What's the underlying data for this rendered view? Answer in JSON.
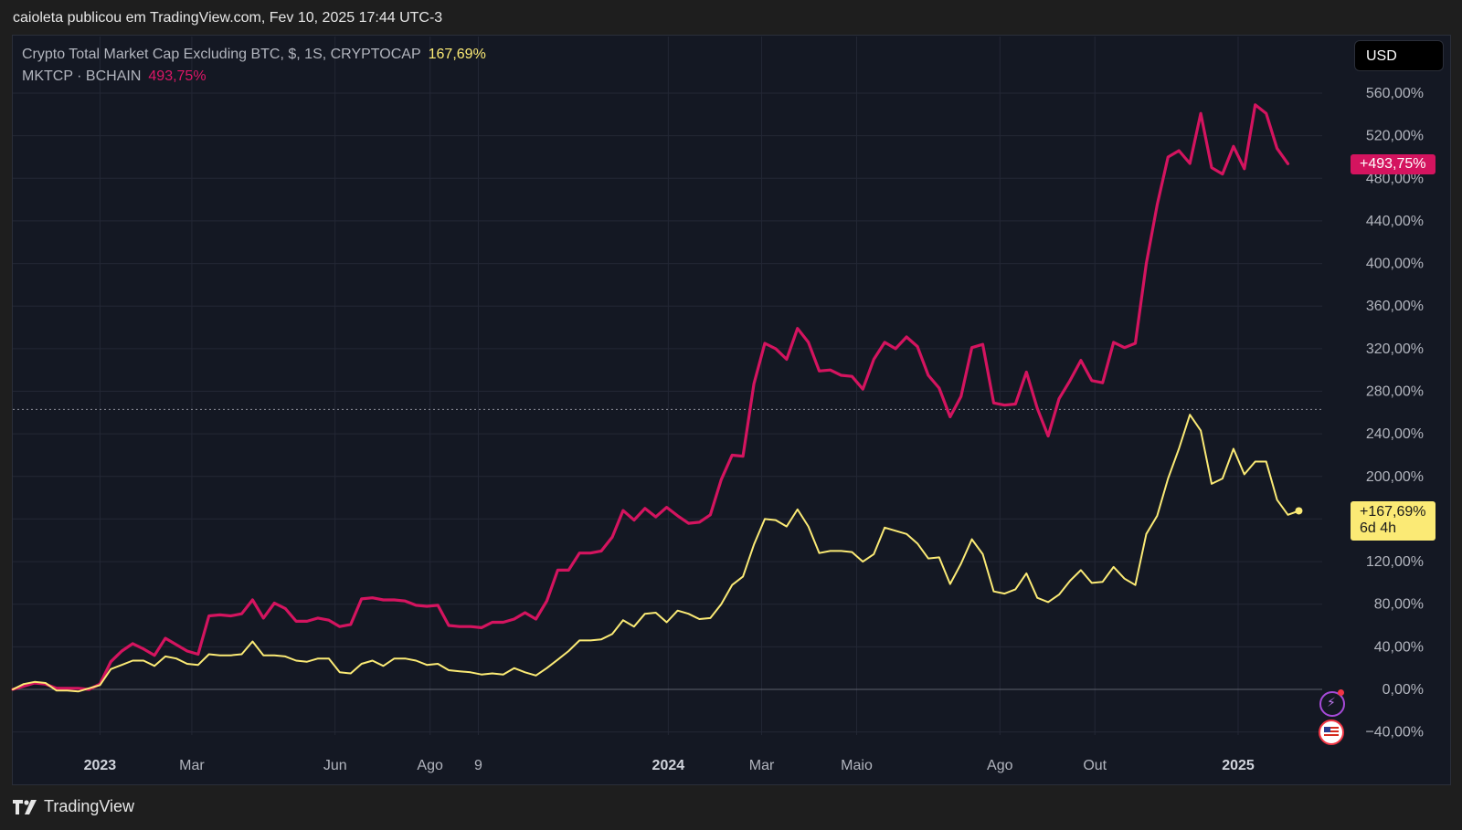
{
  "header": {
    "publish_line": "caioleta publicou em TradingView.com, Fev 10, 2025 17:44 UTC-3"
  },
  "legend": {
    "series1_name": "Crypto Total Market Cap Excluding BTC, $, 1S, CRYPTOCAP",
    "series1_value": "167,69%",
    "series2_name": "MKTCP · BCHAIN",
    "series2_value": "493,75%"
  },
  "currency_button": "USD",
  "badges": {
    "pink": "+493,75%",
    "yellow_value": "+167,69%",
    "yellow_countdown": "6d 4h"
  },
  "footer": {
    "brand": "TradingView"
  },
  "icons": {
    "bolt": "lightning-icon",
    "flag": "us-flag-icon",
    "logo": "tradingview-logo-icon"
  },
  "colors": {
    "pink": "#d4145f",
    "yellow": "#fbea75",
    "background": "#141823",
    "grid": "#232735"
  },
  "chart_data": {
    "type": "line",
    "y_unit": "%",
    "ylim": [
      -60,
      590
    ],
    "y_ticks": [
      {
        "value": 560,
        "label": "560,00%"
      },
      {
        "value": 520,
        "label": "520,00%"
      },
      {
        "value": 480,
        "label": "480,00%"
      },
      {
        "value": 440,
        "label": "440,00%"
      },
      {
        "value": 400,
        "label": "400,00%"
      },
      {
        "value": 360,
        "label": "360,00%"
      },
      {
        "value": 320,
        "label": "320,00%"
      },
      {
        "value": 280,
        "label": "280,00%"
      },
      {
        "value": 240,
        "label": "240,00%"
      },
      {
        "value": 200,
        "label": "200,00%"
      },
      {
        "value": 160,
        "label": "160,00%"
      },
      {
        "value": 120,
        "label": "120,00%"
      },
      {
        "value": 80,
        "label": "80,00%"
      },
      {
        "value": 40,
        "label": "40,00%"
      },
      {
        "value": 0,
        "label": "0,00%"
      },
      {
        "value": -40,
        "label": "−40,00%"
      }
    ],
    "x_ticks": [
      {
        "date": "2023-01-01",
        "label": "2023",
        "bold": true
      },
      {
        "date": "2023-03-01",
        "label": "Mar",
        "bold": false
      },
      {
        "date": "2023-06-01",
        "label": "Jun",
        "bold": false
      },
      {
        "date": "2023-08-01",
        "label": "Ago",
        "bold": false
      },
      {
        "date": "2023-09-01",
        "label": "9",
        "bold": false
      },
      {
        "date": "2024-01-01",
        "label": "2024",
        "bold": true
      },
      {
        "date": "2024-03-01",
        "label": "Mar",
        "bold": false
      },
      {
        "date": "2024-05-01",
        "label": "Maio",
        "bold": false
      },
      {
        "date": "2024-08-01",
        "label": "Ago",
        "bold": false
      },
      {
        "date": "2024-10-01",
        "label": "Out",
        "bold": false
      },
      {
        "date": "2025-01-01",
        "label": "2025",
        "bold": true
      }
    ],
    "x_range": [
      "2022-11-06",
      "2025-02-24"
    ],
    "reference_line_value": 263,
    "series": [
      {
        "name": "MKTCP · BCHAIN",
        "color": "#d4145f",
        "points": [
          [
            "2022-11-06",
            0
          ],
          [
            "2022-11-13",
            3
          ],
          [
            "2022-11-20",
            6
          ],
          [
            "2022-11-27",
            5
          ],
          [
            "2022-12-04",
            1
          ],
          [
            "2022-12-11",
            1
          ],
          [
            "2022-12-18",
            1
          ],
          [
            "2022-12-25",
            0
          ],
          [
            "2023-01-01",
            5
          ],
          [
            "2023-01-08",
            26
          ],
          [
            "2023-01-15",
            36
          ],
          [
            "2023-01-22",
            43
          ],
          [
            "2023-01-29",
            38
          ],
          [
            "2023-02-05",
            32
          ],
          [
            "2023-02-12",
            48
          ],
          [
            "2023-02-19",
            42
          ],
          [
            "2023-02-26",
            36
          ],
          [
            "2023-03-05",
            33
          ],
          [
            "2023-03-12",
            69
          ],
          [
            "2023-03-19",
            70
          ],
          [
            "2023-03-26",
            69
          ],
          [
            "2023-04-02",
            71
          ],
          [
            "2023-04-09",
            84
          ],
          [
            "2023-04-16",
            67
          ],
          [
            "2023-04-23",
            81
          ],
          [
            "2023-04-30",
            76
          ],
          [
            "2023-05-07",
            64
          ],
          [
            "2023-05-14",
            64
          ],
          [
            "2023-05-21",
            67
          ],
          [
            "2023-05-28",
            65
          ],
          [
            "2023-06-04",
            59
          ],
          [
            "2023-06-11",
            61
          ],
          [
            "2023-06-18",
            85
          ],
          [
            "2023-06-25",
            86
          ],
          [
            "2023-07-02",
            84
          ],
          [
            "2023-07-09",
            84
          ],
          [
            "2023-07-16",
            83
          ],
          [
            "2023-07-23",
            79
          ],
          [
            "2023-07-30",
            78
          ],
          [
            "2023-08-06",
            79
          ],
          [
            "2023-08-13",
            60
          ],
          [
            "2023-08-20",
            59
          ],
          [
            "2023-08-27",
            59
          ],
          [
            "2023-09-03",
            58
          ],
          [
            "2023-09-10",
            63
          ],
          [
            "2023-09-17",
            63
          ],
          [
            "2023-09-24",
            66
          ],
          [
            "2023-10-01",
            72
          ],
          [
            "2023-10-08",
            66
          ],
          [
            "2023-10-15",
            83
          ],
          [
            "2023-10-22",
            112
          ],
          [
            "2023-10-29",
            112
          ],
          [
            "2023-11-05",
            128
          ],
          [
            "2023-11-12",
            128
          ],
          [
            "2023-11-19",
            130
          ],
          [
            "2023-11-26",
            143
          ],
          [
            "2023-12-03",
            168
          ],
          [
            "2023-12-10",
            159
          ],
          [
            "2023-12-17",
            170
          ],
          [
            "2023-12-24",
            162
          ],
          [
            "2023-12-31",
            171
          ],
          [
            "2024-01-07",
            163
          ],
          [
            "2024-01-14",
            156
          ],
          [
            "2024-01-21",
            157
          ],
          [
            "2024-01-28",
            164
          ],
          [
            "2024-02-04",
            197
          ],
          [
            "2024-02-11",
            220
          ],
          [
            "2024-02-18",
            219
          ],
          [
            "2024-02-25",
            287
          ],
          [
            "2024-03-03",
            325
          ],
          [
            "2024-03-10",
            320
          ],
          [
            "2024-03-17",
            310
          ],
          [
            "2024-03-24",
            339
          ],
          [
            "2024-03-31",
            326
          ],
          [
            "2024-04-07",
            299
          ],
          [
            "2024-04-14",
            300
          ],
          [
            "2024-04-21",
            295
          ],
          [
            "2024-04-28",
            294
          ],
          [
            "2024-05-05",
            282
          ],
          [
            "2024-05-12",
            310
          ],
          [
            "2024-05-19",
            326
          ],
          [
            "2024-05-26",
            320
          ],
          [
            "2024-06-02",
            331
          ],
          [
            "2024-06-09",
            322
          ],
          [
            "2024-06-16",
            295
          ],
          [
            "2024-06-23",
            283
          ],
          [
            "2024-06-30",
            256
          ],
          [
            "2024-07-07",
            275
          ],
          [
            "2024-07-14",
            321
          ],
          [
            "2024-07-21",
            324
          ],
          [
            "2024-07-28",
            269
          ],
          [
            "2024-08-04",
            267
          ],
          [
            "2024-08-11",
            268
          ],
          [
            "2024-08-18",
            298
          ],
          [
            "2024-08-25",
            264
          ],
          [
            "2024-09-01",
            238
          ],
          [
            "2024-09-08",
            273
          ],
          [
            "2024-09-15",
            290
          ],
          [
            "2024-09-22",
            309
          ],
          [
            "2024-09-29",
            290
          ],
          [
            "2024-10-06",
            288
          ],
          [
            "2024-10-13",
            326
          ],
          [
            "2024-10-20",
            321
          ],
          [
            "2024-10-27",
            325
          ],
          [
            "2024-11-03",
            400
          ],
          [
            "2024-11-10",
            455
          ],
          [
            "2024-11-17",
            500
          ],
          [
            "2024-11-24",
            506
          ],
          [
            "2024-12-01",
            494
          ],
          [
            "2024-12-08",
            541
          ],
          [
            "2024-12-15",
            490
          ],
          [
            "2024-12-22",
            484
          ],
          [
            "2024-12-29",
            510
          ],
          [
            "2025-01-05",
            489
          ],
          [
            "2025-01-12",
            549
          ],
          [
            "2025-01-19",
            541
          ],
          [
            "2025-01-26",
            508
          ],
          [
            "2025-02-02",
            493.75
          ]
        ]
      },
      {
        "name": "Crypto Total Market Cap Excluding BTC, $, 1S, CRYPTOCAP",
        "color": "#fbea75",
        "points": [
          [
            "2022-11-06",
            0
          ],
          [
            "2022-11-13",
            5
          ],
          [
            "2022-11-20",
            7
          ],
          [
            "2022-11-27",
            6
          ],
          [
            "2022-12-04",
            -1
          ],
          [
            "2022-12-11",
            -1
          ],
          [
            "2022-12-18",
            -2
          ],
          [
            "2022-12-25",
            1
          ],
          [
            "2023-01-01",
            4
          ],
          [
            "2023-01-08",
            19
          ],
          [
            "2023-01-15",
            23
          ],
          [
            "2023-01-22",
            27
          ],
          [
            "2023-01-29",
            27
          ],
          [
            "2023-02-05",
            22
          ],
          [
            "2023-02-12",
            31
          ],
          [
            "2023-02-19",
            29
          ],
          [
            "2023-02-26",
            24
          ],
          [
            "2023-03-05",
            23
          ],
          [
            "2023-03-12",
            33
          ],
          [
            "2023-03-19",
            32
          ],
          [
            "2023-03-26",
            32
          ],
          [
            "2023-04-02",
            33
          ],
          [
            "2023-04-09",
            45
          ],
          [
            "2023-04-16",
            32
          ],
          [
            "2023-04-23",
            32
          ],
          [
            "2023-04-30",
            31
          ],
          [
            "2023-05-07",
            27
          ],
          [
            "2023-05-14",
            26
          ],
          [
            "2023-05-21",
            29
          ],
          [
            "2023-05-28",
            29
          ],
          [
            "2023-06-04",
            16
          ],
          [
            "2023-06-11",
            15
          ],
          [
            "2023-06-18",
            24
          ],
          [
            "2023-06-25",
            27
          ],
          [
            "2023-07-02",
            22
          ],
          [
            "2023-07-09",
            29
          ],
          [
            "2023-07-16",
            29
          ],
          [
            "2023-07-23",
            27
          ],
          [
            "2023-07-30",
            23
          ],
          [
            "2023-08-06",
            24
          ],
          [
            "2023-08-13",
            18
          ],
          [
            "2023-08-20",
            17
          ],
          [
            "2023-08-27",
            16
          ],
          [
            "2023-09-03",
            14
          ],
          [
            "2023-09-10",
            15
          ],
          [
            "2023-09-17",
            14
          ],
          [
            "2023-09-24",
            20
          ],
          [
            "2023-10-01",
            16
          ],
          [
            "2023-10-08",
            13
          ],
          [
            "2023-10-15",
            20
          ],
          [
            "2023-10-22",
            28
          ],
          [
            "2023-10-29",
            36
          ],
          [
            "2023-11-05",
            46
          ],
          [
            "2023-11-12",
            46
          ],
          [
            "2023-11-19",
            47
          ],
          [
            "2023-11-26",
            52
          ],
          [
            "2023-12-03",
            65
          ],
          [
            "2023-12-10",
            59
          ],
          [
            "2023-12-17",
            71
          ],
          [
            "2023-12-24",
            72
          ],
          [
            "2023-12-31",
            63
          ],
          [
            "2024-01-07",
            74
          ],
          [
            "2024-01-14",
            71
          ],
          [
            "2024-01-21",
            66
          ],
          [
            "2024-01-28",
            67
          ],
          [
            "2024-02-04",
            80
          ],
          [
            "2024-02-11",
            98
          ],
          [
            "2024-02-18",
            106
          ],
          [
            "2024-02-25",
            136
          ],
          [
            "2024-03-03",
            160
          ],
          [
            "2024-03-10",
            159
          ],
          [
            "2024-03-17",
            153
          ],
          [
            "2024-03-24",
            169
          ],
          [
            "2024-03-31",
            153
          ],
          [
            "2024-04-07",
            128
          ],
          [
            "2024-04-14",
            130
          ],
          [
            "2024-04-21",
            130
          ],
          [
            "2024-04-28",
            129
          ],
          [
            "2024-05-05",
            120
          ],
          [
            "2024-05-12",
            127
          ],
          [
            "2024-05-19",
            152
          ],
          [
            "2024-05-26",
            149
          ],
          [
            "2024-06-02",
            146
          ],
          [
            "2024-06-09",
            137
          ],
          [
            "2024-06-16",
            123
          ],
          [
            "2024-06-23",
            124
          ],
          [
            "2024-06-30",
            99
          ],
          [
            "2024-07-07",
            118
          ],
          [
            "2024-07-14",
            141
          ],
          [
            "2024-07-21",
            127
          ],
          [
            "2024-07-28",
            92
          ],
          [
            "2024-08-04",
            90
          ],
          [
            "2024-08-11",
            94
          ],
          [
            "2024-08-18",
            109
          ],
          [
            "2024-08-25",
            86
          ],
          [
            "2024-09-01",
            82
          ],
          [
            "2024-09-08",
            89
          ],
          [
            "2024-09-15",
            102
          ],
          [
            "2024-09-22",
            112
          ],
          [
            "2024-09-29",
            100
          ],
          [
            "2024-10-06",
            101
          ],
          [
            "2024-10-13",
            115
          ],
          [
            "2024-10-20",
            104
          ],
          [
            "2024-10-27",
            98
          ],
          [
            "2024-11-03",
            146
          ],
          [
            "2024-11-10",
            163
          ],
          [
            "2024-11-17",
            198
          ],
          [
            "2024-11-24",
            226
          ],
          [
            "2024-12-01",
            258
          ],
          [
            "2024-12-08",
            243
          ],
          [
            "2024-12-15",
            193
          ],
          [
            "2024-12-22",
            198
          ],
          [
            "2024-12-29",
            226
          ],
          [
            "2025-01-05",
            202
          ],
          [
            "2025-01-12",
            214
          ],
          [
            "2025-01-19",
            214
          ],
          [
            "2025-01-26",
            178
          ],
          [
            "2025-02-02",
            164
          ],
          [
            "2025-02-09",
            167.69
          ]
        ]
      }
    ]
  }
}
